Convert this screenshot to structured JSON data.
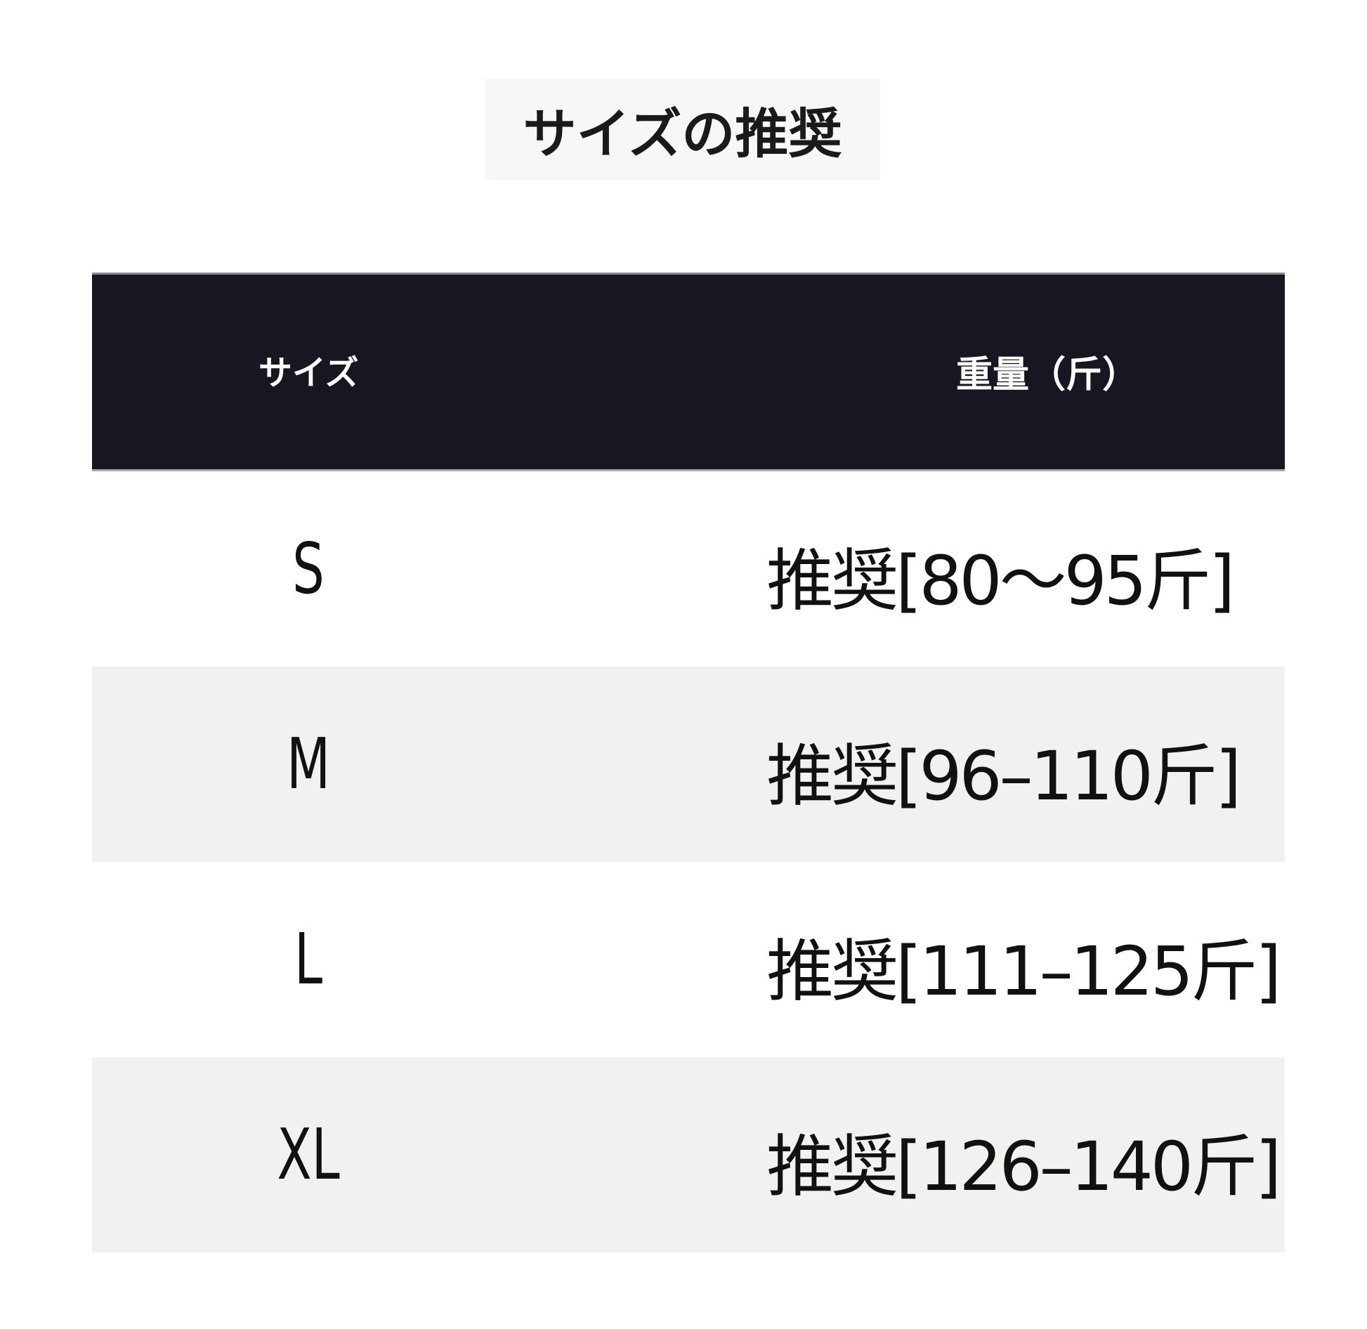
{
  "title": "サイズの推奨",
  "table": {
    "headers": [
      "サイズ",
      "重量（斤）"
    ],
    "header_bg": "#161720",
    "rows": [
      {
        "size": "S",
        "weight": "推奨[80～95斤]"
      },
      {
        "size": "M",
        "weight": "推奨[96–110斤]"
      },
      {
        "size": "L",
        "weight": "推奨[111–125斤]"
      },
      {
        "size": "XL",
        "weight": "推奨[126–140斤]"
      }
    ]
  }
}
